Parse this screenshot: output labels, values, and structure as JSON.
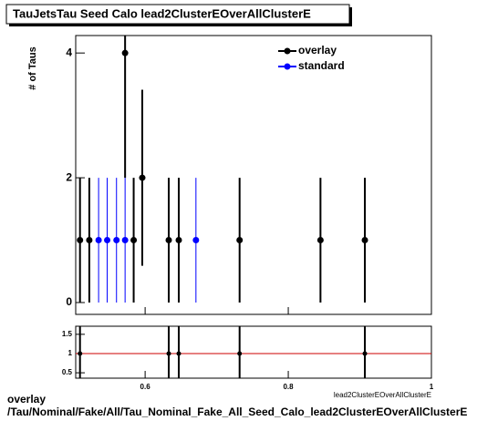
{
  "chart_data": [
    {
      "type": "errorbar",
      "title": "TauJetsTau Seed Calo lead2ClusterEOverAllClusterE",
      "y_label": "# of Taus",
      "xlim": [
        0.503,
        1
      ],
      "ylim": [
        -0.19,
        4.28
      ],
      "yticks": [
        0,
        2,
        4
      ],
      "legend": "upper right",
      "series": [
        {
          "name": "overlay",
          "color": "#000000",
          "x": [
            0.509,
            0.522,
            0.572,
            0.584,
            0.596,
            0.633,
            0.647,
            0.732,
            0.845,
            0.907
          ],
          "values": [
            1,
            1,
            4,
            1,
            2,
            1,
            1,
            1,
            1,
            1
          ],
          "yerr": [
            1,
            1,
            2,
            1,
            1.41,
            1,
            1,
            1,
            1,
            1
          ]
        },
        {
          "name": "standard",
          "color": "#0000ff",
          "x": [
            0.535,
            0.547,
            0.56,
            0.572,
            0.671
          ],
          "values": [
            1,
            1,
            1,
            1,
            1
          ],
          "yerr": [
            1,
            1,
            1,
            1,
            1
          ]
        }
      ]
    },
    {
      "type": "errorbar",
      "x_label": "lead2ClusterEOverAllClusterE",
      "xlim": [
        0.503,
        1
      ],
      "ylim": [
        0.36,
        1.71
      ],
      "xticks": [
        0.6,
        0.8,
        1
      ],
      "yticks": [
        0.5,
        1,
        1.5
      ],
      "reference_line": 1,
      "reference_color": "#cc0000",
      "series": [
        {
          "color": "#000000",
          "x": [
            0.509,
            0.633,
            0.647,
            0.732,
            0.907
          ],
          "values": [
            1,
            1,
            1,
            1,
            1
          ],
          "yerr": [
            1,
            1,
            1,
            1,
            1
          ]
        }
      ]
    }
  ],
  "footer": [
    "overlay",
    "/Tau/Nominal/Fake/All/Tau_Nominal_Fake_All_Seed_Calo_lead2ClusterEOverAllClusterE"
  ]
}
